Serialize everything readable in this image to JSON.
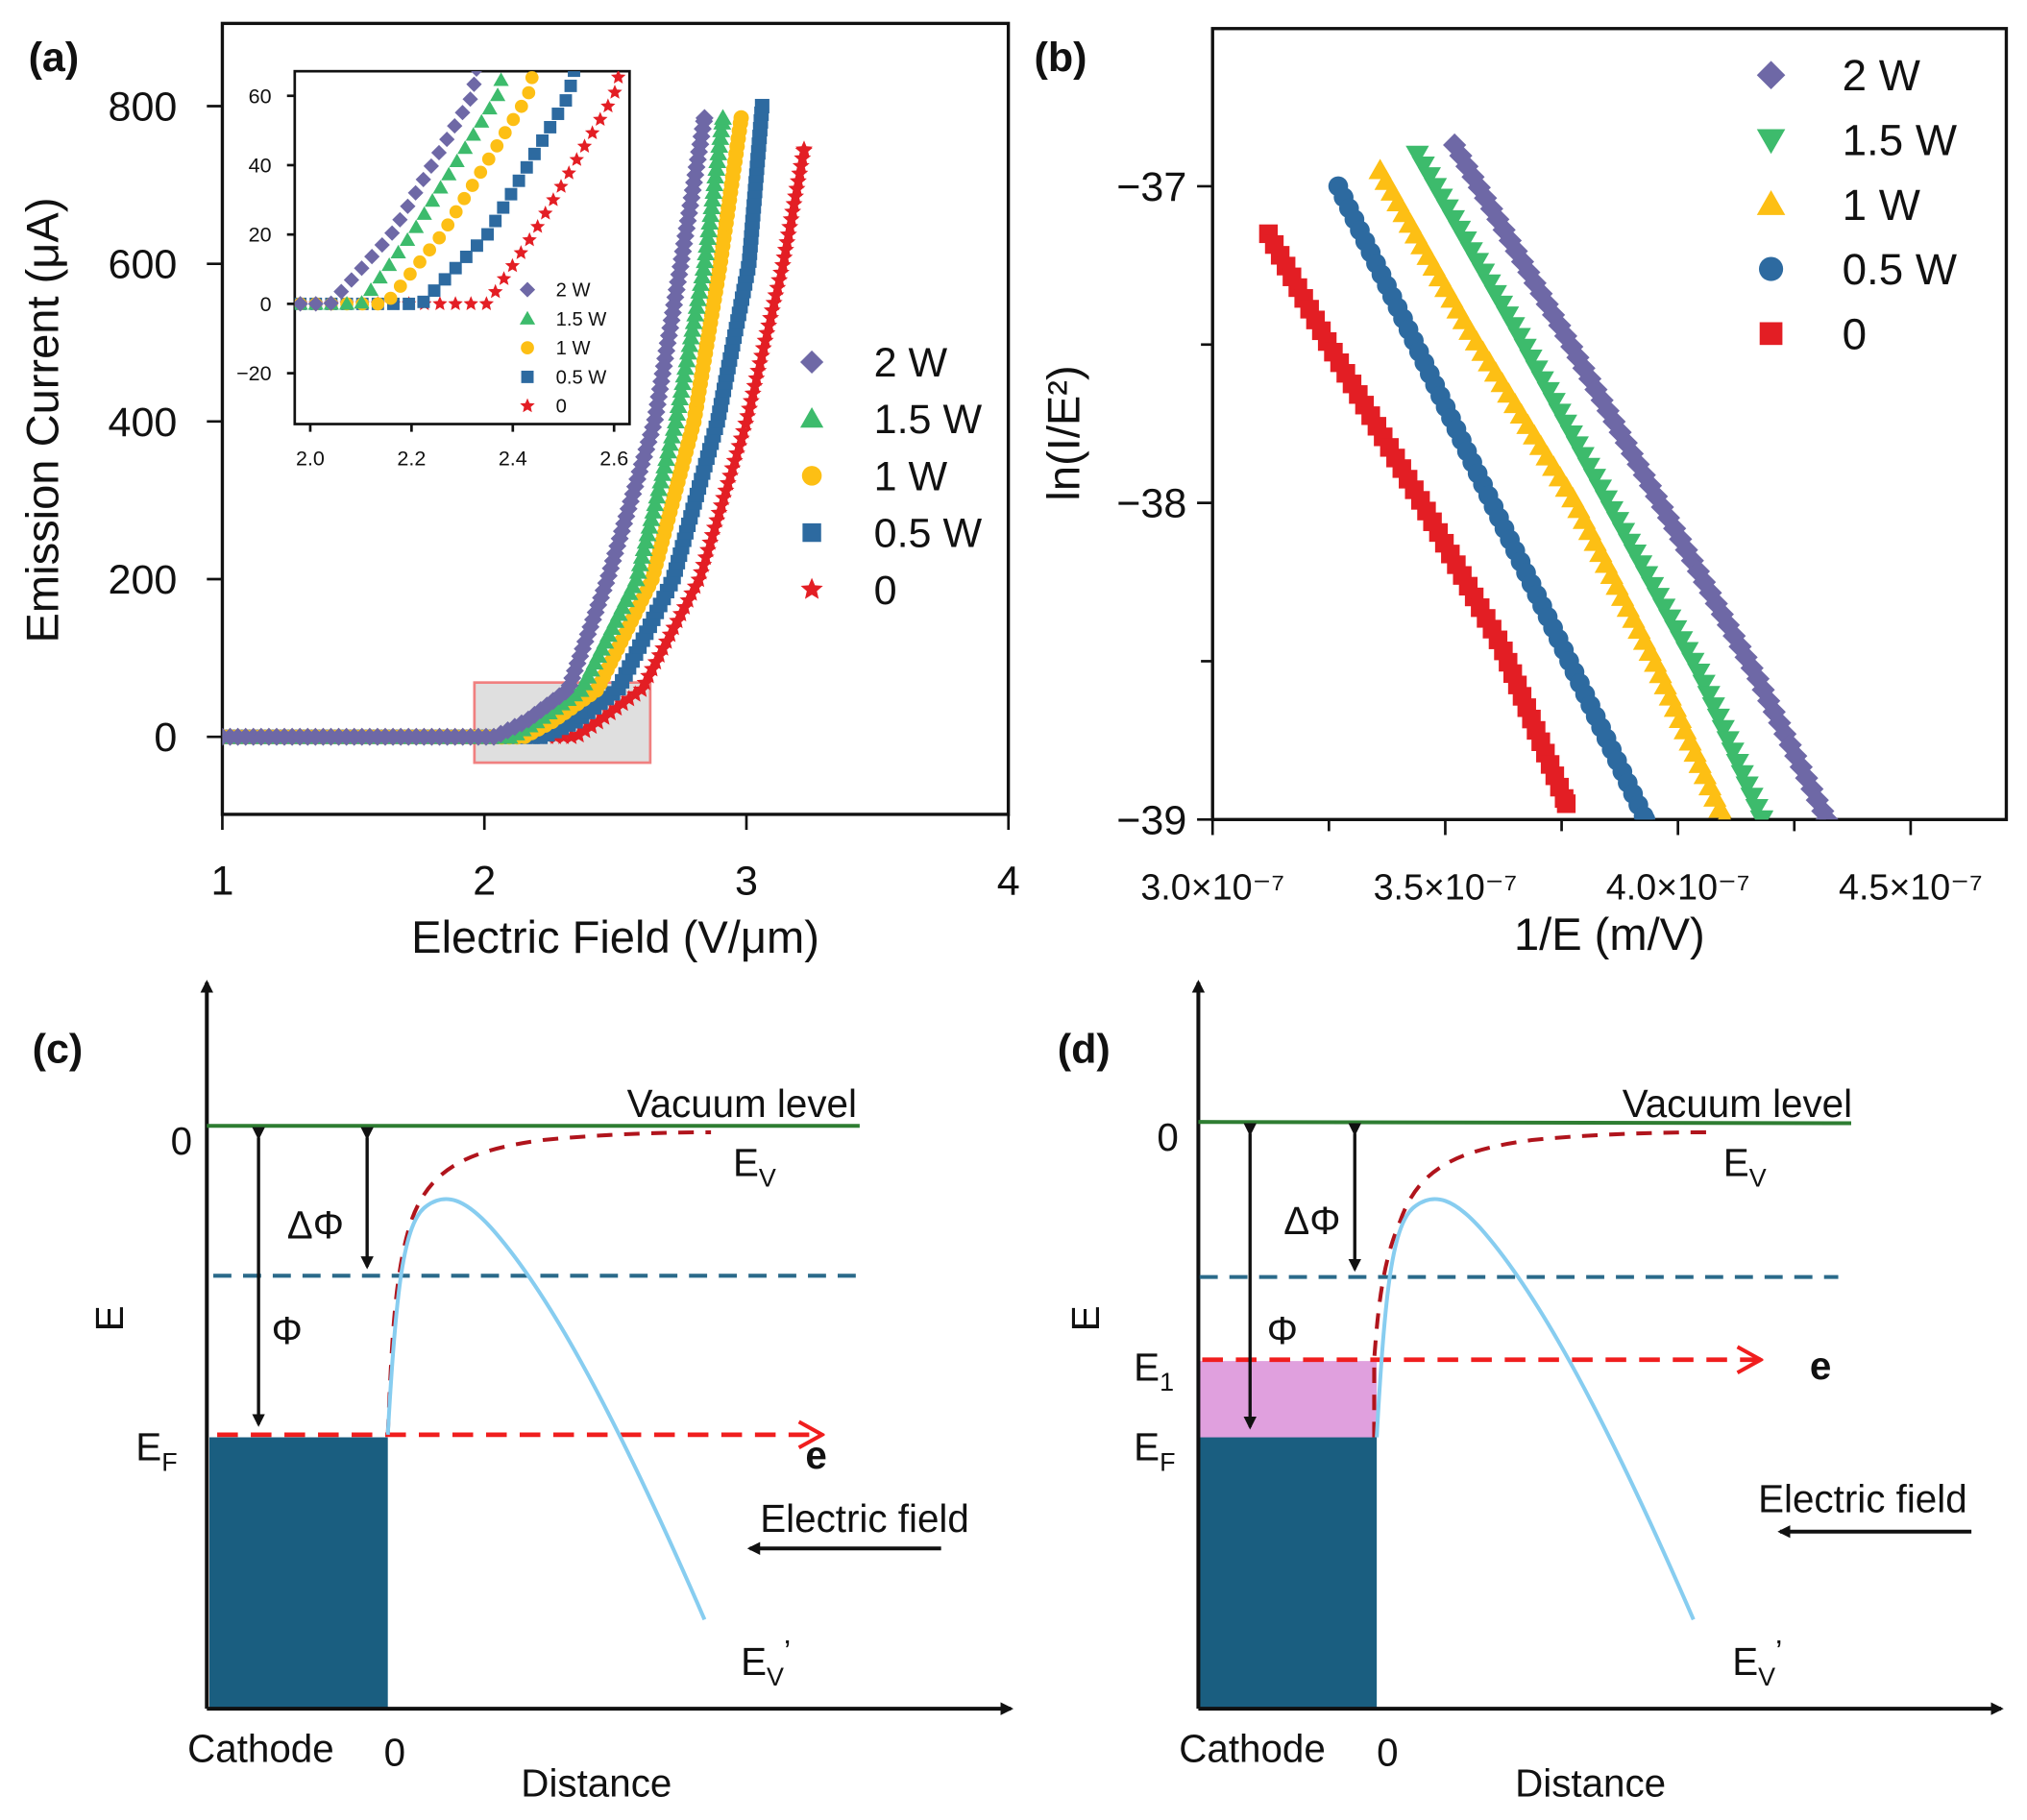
{
  "chart_data": [
    {
      "panel_label": "(a)",
      "type": "scatter",
      "xlabel": "Electric Field (V/μm)",
      "ylabel": "Emission Current (μA)",
      "xlim": [
        1,
        4
      ],
      "ylim": [
        -100,
        905
      ],
      "xticks": [
        {
          "value": 1,
          "label": "1"
        },
        {
          "value": 2,
          "label": "2"
        },
        {
          "value": 3,
          "label": "3"
        },
        {
          "value": 4,
          "label": "4"
        }
      ],
      "yticks": [
        {
          "value": 0,
          "label": "0"
        },
        {
          "value": 200,
          "label": "200"
        },
        {
          "value": 400,
          "label": "400"
        },
        {
          "value": 600,
          "label": "600"
        },
        {
          "value": 800,
          "label": "800"
        }
      ],
      "grid": false,
      "legend_position": "right",
      "series": [
        {
          "name": "2 W",
          "marker": "diamond",
          "color": "#6e68a6",
          "points": [
            [
              1,
              0
            ],
            [
              2.04,
              0
            ],
            [
              2.16,
              20
            ],
            [
              2.32,
              60
            ],
            [
              2.47,
              200
            ],
            [
              2.65,
              400
            ],
            [
              2.75,
              600
            ],
            [
              2.84,
              785
            ]
          ]
        },
        {
          "name": "1.5 W",
          "marker": "triangle-up",
          "color": "#3dbb6c",
          "points": [
            [
              1,
              0
            ],
            [
              2.1,
              0
            ],
            [
              2.2,
              20
            ],
            [
              2.37,
              60
            ],
            [
              2.58,
              200
            ],
            [
              2.73,
              400
            ],
            [
              2.84,
              600
            ],
            [
              2.91,
              785
            ]
          ]
        },
        {
          "name": "1 W",
          "marker": "circle",
          "color": "#fdbf14",
          "points": [
            [
              1,
              0
            ],
            [
              2.15,
              0
            ],
            [
              2.26,
              20
            ],
            [
              2.43,
              60
            ],
            [
              2.64,
              200
            ],
            [
              2.8,
              400
            ],
            [
              2.9,
              600
            ],
            [
              2.98,
              785
            ]
          ]
        },
        {
          "name": "0.5 W",
          "marker": "square",
          "color": "#2d6aa0",
          "points": [
            [
              1,
              0
            ],
            [
              2.22,
              0
            ],
            [
              2.35,
              20
            ],
            [
              2.51,
              60
            ],
            [
              2.72,
              200
            ],
            [
              2.89,
              400
            ],
            [
              3.01,
              600
            ],
            [
              3.06,
              800
            ]
          ]
        },
        {
          "name": "0",
          "marker": "star",
          "color": "#e31e24",
          "points": [
            [
              1,
              0
            ],
            [
              2.35,
              0
            ],
            [
              2.44,
              20
            ],
            [
              2.6,
              60
            ],
            [
              2.82,
              200
            ],
            [
              3.0,
              400
            ],
            [
              3.14,
              600
            ],
            [
              3.22,
              745
            ]
          ]
        }
      ],
      "zoom_region": {
        "xlim": [
          1.96,
          2.63
        ],
        "ylim": [
          -33,
          69
        ],
        "color": "#f08080"
      },
      "inset": {
        "xlim": [
          1.97,
          2.63
        ],
        "ylim": [
          -34,
          67
        ],
        "xticks": [
          {
            "value": 2.0,
            "label": "2.0"
          },
          {
            "value": 2.2,
            "label": "2.2"
          },
          {
            "value": 2.4,
            "label": "2.4"
          },
          {
            "value": 2.6,
            "label": "2.6"
          }
        ],
        "yticks": [
          {
            "value": -20,
            "label": "−20"
          },
          {
            "value": 0,
            "label": "0"
          },
          {
            "value": 20,
            "label": "20"
          },
          {
            "value": 40,
            "label": "40"
          },
          {
            "value": 60,
            "label": "60"
          }
        ],
        "legend_position": "bottom-right"
      }
    },
    {
      "panel_label": "(b)",
      "type": "scatter",
      "xlabel": "1/E (m/V)",
      "ylabel": "ln(I/E²)",
      "xlim": [
        3e-07,
        4.7e-07
      ],
      "ylim": [
        -39,
        -36.5
      ],
      "xticks": [
        {
          "value": 3e-07,
          "label": "3.0×10⁻⁷"
        },
        {
          "value": 3.5e-07,
          "label": "3.5×10⁻⁷"
        },
        {
          "value": 4e-07,
          "label": "4.0×10⁻⁷"
        },
        {
          "value": 4.5e-07,
          "label": "4.5×10⁻⁷"
        }
      ],
      "xminor": [
        3.25e-07,
        3.75e-07,
        4.25e-07
      ],
      "yticks": [
        {
          "value": -37,
          "label": "−37"
        },
        {
          "value": -38,
          "label": "−38"
        },
        {
          "value": -39,
          "label": "−39"
        }
      ],
      "yminor": [
        -37.5,
        -38.5
      ],
      "grid": false,
      "legend_position": "top-right",
      "series": [
        {
          "name": "2 W",
          "marker": "diamond",
          "color": "#6e68a6",
          "points": [
            [
              3.52e-07,
              -36.87
            ],
            [
              3.75e-07,
              -37.45
            ],
            [
              4e-07,
              -38.1
            ],
            [
              4.17e-07,
              -38.55
            ],
            [
              4.32e-07,
              -39.0
            ]
          ]
        },
        {
          "name": "1.5 W",
          "marker": "triangle-down",
          "color": "#3dbb6c",
          "points": [
            [
              3.44e-07,
              -36.9
            ],
            [
              3.65e-07,
              -37.45
            ],
            [
              3.85e-07,
              -38.0
            ],
            [
              4.05e-07,
              -38.55
            ],
            [
              4.18e-07,
              -39.0
            ]
          ]
        },
        {
          "name": "1 W",
          "marker": "triangle-up",
          "color": "#fdbf14",
          "points": [
            [
              3.36e-07,
              -36.95
            ],
            [
              3.55e-07,
              -37.45
            ],
            [
              3.78e-07,
              -38.0
            ],
            [
              3.95e-07,
              -38.5
            ],
            [
              4.1e-07,
              -39.0
            ]
          ]
        },
        {
          "name": "0.5 W",
          "marker": "circle",
          "color": "#2d6aa0",
          "points": [
            [
              3.27e-07,
              -37.0
            ],
            [
              3.42e-07,
              -37.45
            ],
            [
              3.6e-07,
              -38.0
            ],
            [
              3.75e-07,
              -38.45
            ],
            [
              3.93e-07,
              -39.0
            ]
          ]
        },
        {
          "name": "0",
          "marker": "square",
          "color": "#e31e24",
          "points": [
            [
              3.12e-07,
              -37.15
            ],
            [
              3.25e-07,
              -37.5
            ],
            [
              3.45e-07,
              -38.0
            ],
            [
              3.62e-07,
              -38.45
            ],
            [
              3.76e-07,
              -38.95
            ]
          ]
        }
      ]
    }
  ],
  "diagrams": {
    "c": {
      "panel_label": "(c)",
      "vacuum_level": "Vacuum level",
      "zero_energy": "0",
      "ev": {
        "main": "E",
        "sub": "V"
      },
      "ev_prime": {
        "main": "E",
        "sub": "V",
        "sup": "’"
      },
      "delta_phi": "ΔΦ",
      "phi": "Φ",
      "axis_e": "E",
      "ef": {
        "main": "E",
        "sub": "F"
      },
      "electron": "e",
      "electric_field": "Electric field",
      "cathode": "Cathode",
      "zero_distance": "0",
      "distance": "Distance"
    },
    "d": {
      "panel_label": "(d)",
      "vacuum_level": "Vacuum level",
      "zero_energy": "0",
      "ev": {
        "main": "E",
        "sub": "V"
      },
      "ev_prime": {
        "main": "E",
        "sub": "V",
        "sup": "’"
      },
      "delta_phi": "ΔΦ",
      "phi": "Φ",
      "axis_e": "E",
      "e1": {
        "main": "E",
        "sub": "1"
      },
      "ef": {
        "main": "E",
        "sub": "F"
      },
      "electron": "e",
      "electric_field": "Electric field",
      "cathode": "Cathode",
      "zero_distance": "0",
      "distance": "Distance"
    },
    "colors": {
      "vacuum": "#2e7d32",
      "barrier_dashed": "#b0141c",
      "fermi_dashed": "#f01e1e",
      "level_dashed": "#2a6a8a",
      "potential": "#87cdf0",
      "cathode": "#1a5e80",
      "excited": "#e0a0de"
    }
  }
}
